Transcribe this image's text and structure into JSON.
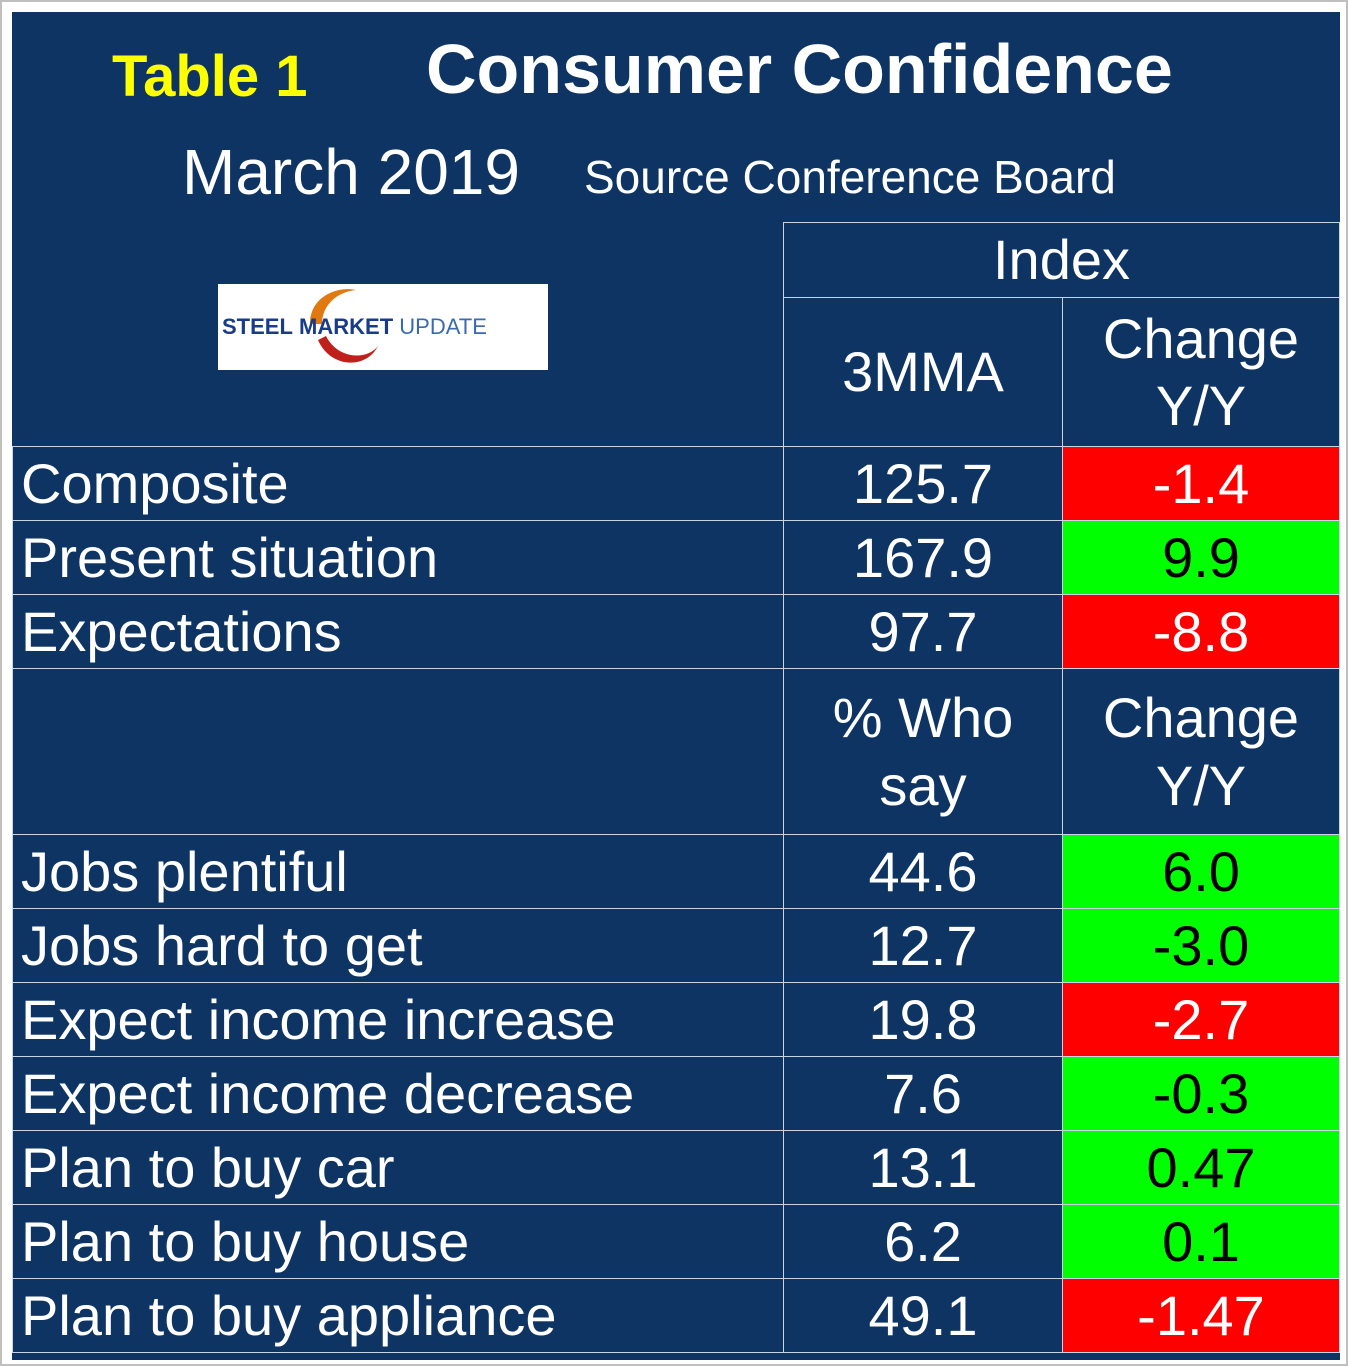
{
  "header": {
    "table_label": "Table 1",
    "title": "Consumer Confidence",
    "date": "March 2019",
    "source": "Source Conference Board"
  },
  "logo": {
    "word1": "STEEL",
    "word2": "MARKET",
    "word3": "UPDATE",
    "colors": {
      "blue": "#1a3a8a",
      "orange": "#e07a10",
      "red": "#c0201c"
    }
  },
  "colors": {
    "panel": "#0e3464",
    "title_accent": "#ffff00",
    "negative_fill": "#ff0000",
    "positive_fill": "#00ff00"
  },
  "section1": {
    "group_header": "Index",
    "col1": "3MMA",
    "col2_line1": "Change",
    "col2_line2": "Y/Y",
    "rows": [
      {
        "label": "Composite",
        "value": "125.7",
        "change": "-1.4",
        "status": "red"
      },
      {
        "label": "Present situation",
        "value": "167.9",
        "change": "9.9",
        "status": "green"
      },
      {
        "label": "Expectations",
        "value": "97.7",
        "change": "-8.8",
        "status": "red"
      }
    ]
  },
  "section2": {
    "col1_line1": "% Who",
    "col1_line2": "say",
    "col2_line1": "Change",
    "col2_line2": "Y/Y",
    "rows": [
      {
        "label": "Jobs plentiful",
        "value": "44.6",
        "change": "6.0",
        "status": "green"
      },
      {
        "label": "Jobs hard to get",
        "value": "12.7",
        "change": "-3.0",
        "status": "green"
      },
      {
        "label": "Expect income increase",
        "value": "19.8",
        "change": "-2.7",
        "status": "red"
      },
      {
        "label": "Expect income decrease",
        "value": "7.6",
        "change": "-0.3",
        "status": "green"
      },
      {
        "label": "Plan to buy car",
        "value": "13.1",
        "change": "0.47",
        "status": "green"
      },
      {
        "label": "Plan to buy house",
        "value": "6.2",
        "change": "0.1",
        "status": "green"
      },
      {
        "label": "Plan to buy appliance",
        "value": "49.1",
        "change": "-1.47",
        "status": "red"
      }
    ]
  }
}
